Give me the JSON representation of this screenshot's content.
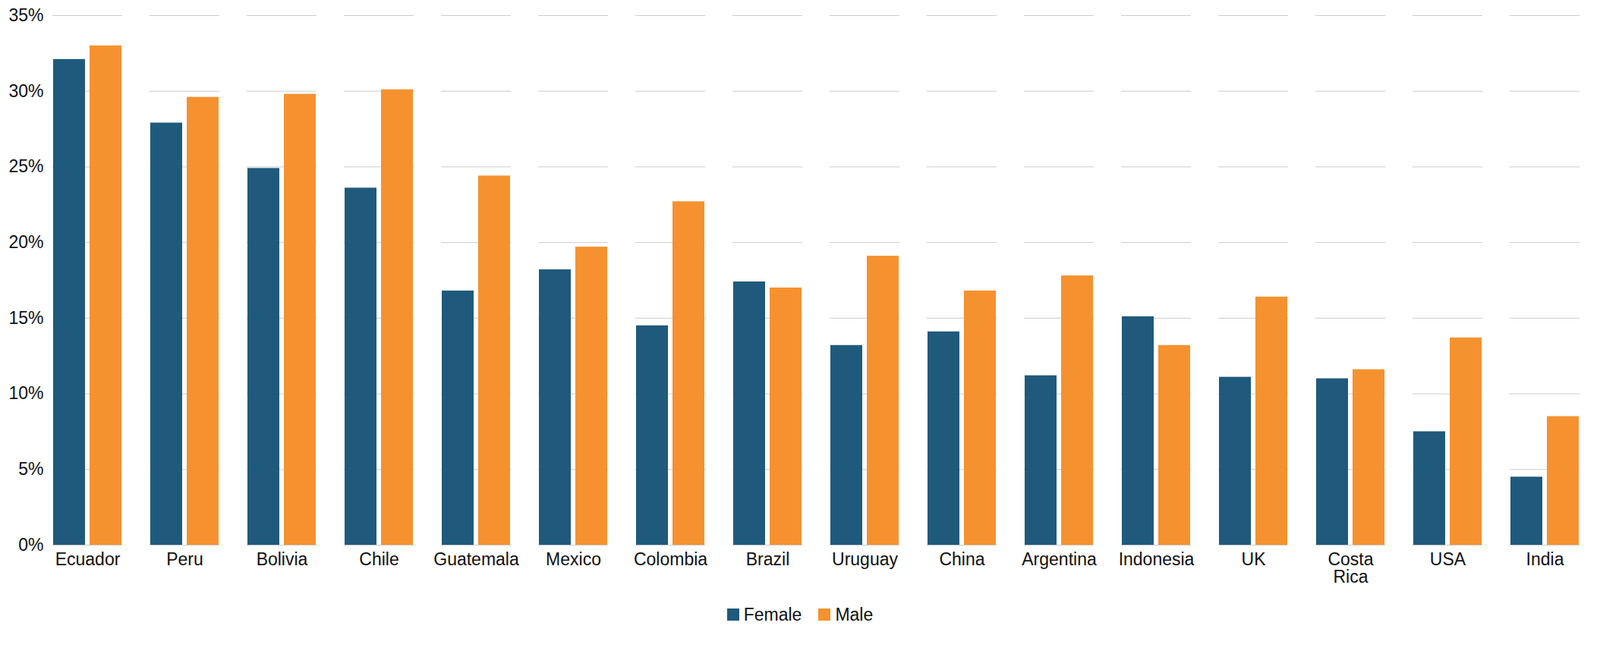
{
  "chart_data": {
    "type": "bar",
    "categories": [
      "Ecuador",
      "Peru",
      "Bolivia",
      "Chile",
      "Guatemala",
      "Mexico",
      "Colombia",
      "Brazil",
      "Uruguay",
      "China",
      "Argentina",
      "Indonesia",
      "UK",
      "Costa Rica",
      "USA",
      "India"
    ],
    "series": [
      {
        "name": "Female",
        "color": "#1f5a7c",
        "values": [
          32.1,
          27.9,
          24.9,
          23.6,
          16.8,
          18.2,
          14.5,
          17.4,
          13.2,
          14.1,
          11.2,
          15.1,
          11.1,
          11.0,
          7.5,
          4.5
        ]
      },
      {
        "name": "Male",
        "color": "#f5922f",
        "values": [
          33.0,
          29.6,
          29.8,
          30.1,
          24.4,
          19.7,
          22.7,
          17.0,
          19.1,
          16.8,
          17.8,
          13.2,
          16.4,
          11.6,
          13.7,
          8.5
        ]
      }
    ],
    "ylim": [
      0,
      35
    ],
    "yticks": [
      {
        "value": 0,
        "label": "0%"
      },
      {
        "value": 5,
        "label": "5%"
      },
      {
        "value": 10,
        "label": "10%"
      },
      {
        "value": 15,
        "label": "15%"
      },
      {
        "value": 20,
        "label": "20%"
      },
      {
        "value": 25,
        "label": "25%"
      },
      {
        "value": 30,
        "label": "30%"
      },
      {
        "value": 35,
        "label": "35%"
      }
    ],
    "grid": true,
    "legend": "bottom"
  }
}
